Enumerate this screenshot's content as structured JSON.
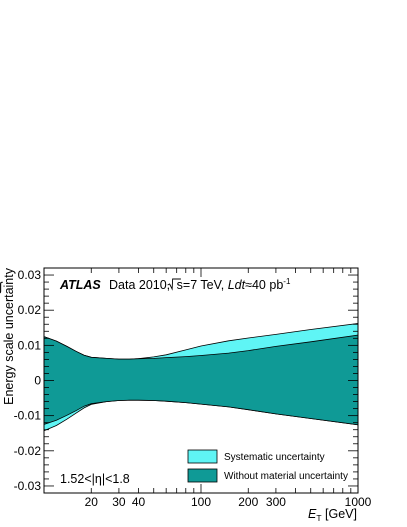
{
  "chart_data": {
    "type": "area",
    "title": "",
    "xlabel": "E_T [GeV]",
    "xlabel_main": "E",
    "xlabel_sub": "T",
    "xlabel_unit": " [GeV]",
    "ylabel": "Energy scale uncertainty",
    "x_scale": "log",
    "xlim": [
      10,
      1000
    ],
    "ylim": [
      -0.032,
      0.032
    ],
    "grid": false,
    "x_ticks": [
      {
        "value": 20,
        "label": "20"
      },
      {
        "value": 30,
        "label": "30"
      },
      {
        "value": 40,
        "label": "40"
      },
      {
        "value": 100,
        "label": "100"
      },
      {
        "value": 200,
        "label": "200"
      },
      {
        "value": 300,
        "label": "300"
      },
      {
        "value": 1000,
        "label": "1000"
      }
    ],
    "y_ticks": [
      {
        "value": 0.03,
        "label": "0.03"
      },
      {
        "value": 0.02,
        "label": "0.02"
      },
      {
        "value": 0.01,
        "label": "0.01"
      },
      {
        "value": 0,
        "label": "0"
      },
      {
        "value": -0.01,
        "label": "-0.01"
      },
      {
        "value": -0.02,
        "label": "-0.02"
      },
      {
        "value": -0.03,
        "label": "-0.03"
      }
    ],
    "x": [
      10,
      12,
      14,
      16,
      18,
      20,
      25,
      30,
      35,
      40,
      50,
      60,
      80,
      100,
      150,
      200,
      300,
      500,
      1000
    ],
    "series": [
      {
        "name": "Systematic uncertainty",
        "color": "#5ff5f5",
        "upper": [
          0.0125,
          0.0112,
          0.0097,
          0.0083,
          0.0072,
          0.0066,
          0.0063,
          0.0061,
          0.0061,
          0.0062,
          0.0067,
          0.0073,
          0.0087,
          0.0098,
          0.0113,
          0.0121,
          0.0131,
          0.0145,
          0.0162
        ],
        "lower": [
          -0.0143,
          -0.0128,
          -0.011,
          -0.0093,
          -0.0078,
          -0.0068,
          -0.006,
          -0.0057,
          -0.0056,
          -0.0056,
          -0.0057,
          -0.0059,
          -0.0063,
          -0.0067,
          -0.0075,
          -0.0083,
          -0.0095,
          -0.0108,
          -0.0126
        ]
      },
      {
        "name": "Without material uncertainty",
        "color": "#0f9a96",
        "upper": [
          0.0125,
          0.0112,
          0.0097,
          0.0083,
          0.0072,
          0.0066,
          0.0063,
          0.0061,
          0.0061,
          0.0062,
          0.0063,
          0.0065,
          0.0068,
          0.0071,
          0.0078,
          0.0085,
          0.0097,
          0.011,
          0.0129
        ],
        "lower": [
          -0.0125,
          -0.0113,
          -0.0099,
          -0.0086,
          -0.0073,
          -0.0066,
          -0.006,
          -0.0057,
          -0.0056,
          -0.0056,
          -0.0057,
          -0.0059,
          -0.0063,
          -0.0067,
          -0.0075,
          -0.0083,
          -0.0095,
          -0.0108,
          -0.0126
        ]
      }
    ],
    "legend_position": "bottom-right",
    "annotations": {
      "atlas": "ATLAS",
      "data_label": "Data 2010, ",
      "sqrt_s": "s",
      "energy": "=7 TeV, ",
      "int_L": "Ldt",
      "lumi": "≈40 pb",
      "lumi_exp": "-1",
      "eta_range": "1.52<|η|<1.8"
    }
  }
}
